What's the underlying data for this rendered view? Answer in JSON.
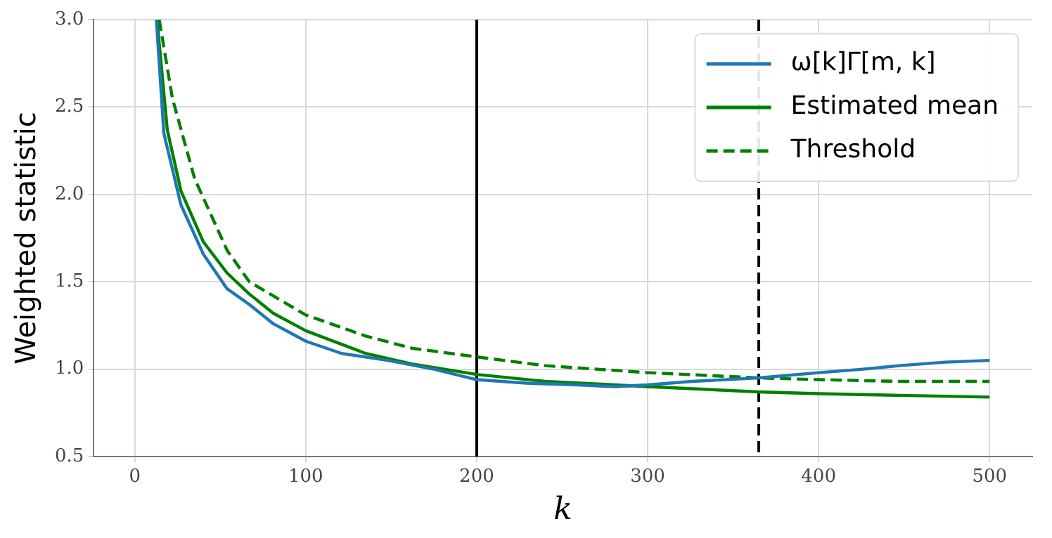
{
  "chart_data": {
    "type": "line",
    "xlabel": "k",
    "ylabel": "Weighted statistic",
    "xlim": [
      -24,
      525
    ],
    "xticks": [
      0,
      100,
      200,
      300,
      400,
      500
    ],
    "ylim": [
      0.5,
      3.0
    ],
    "yticks": [
      {
        "value": 0.5,
        "label": "0.5"
      },
      {
        "value": 1.0,
        "label": "1.0"
      },
      {
        "value": 1.5,
        "label": "1.5"
      },
      {
        "value": 2.0,
        "label": "2.0"
      },
      {
        "value": 2.5,
        "label": "2.5"
      },
      {
        "value": 3.0,
        "label": "3.0"
      }
    ],
    "grid": true,
    "legend": "top right",
    "marker": "none",
    "series": [
      {
        "name": "ω[k]Γ[m, k]",
        "color": "#1f77b4",
        "line_style": "solid",
        "x": [
          12.6,
          17,
          27,
          40,
          54,
          67,
          81,
          100,
          121,
          148,
          175,
          200,
          229,
          259,
          281,
          300,
          326,
          365,
          400,
          426,
          447,
          474,
          500
        ],
        "values": [
          3.0,
          2.35,
          1.94,
          1.66,
          1.46,
          1.37,
          1.26,
          1.16,
          1.09,
          1.05,
          1.0,
          0.94,
          0.92,
          0.91,
          0.9,
          0.91,
          0.93,
          0.95,
          0.98,
          1.0,
          1.02,
          1.04,
          1.05
        ]
      },
      {
        "name": "Estimated mean",
        "color": "#008000",
        "line_style": "solid",
        "x": [
          13,
          19,
          27,
          40,
          54,
          67,
          81,
          100,
          135,
          162,
          200,
          240,
          281,
          300,
          365,
          400,
          447,
          500
        ],
        "values": [
          3.0,
          2.37,
          2.02,
          1.73,
          1.55,
          1.43,
          1.32,
          1.22,
          1.09,
          1.03,
          0.97,
          0.93,
          0.91,
          0.9,
          0.87,
          0.86,
          0.85,
          0.84
        ]
      },
      {
        "name": "Threshold",
        "color": "#008000",
        "line_style": "dashed",
        "x": [
          14.3,
          22,
          35,
          54,
          67,
          100,
          135,
          162,
          200,
          240,
          300,
          365,
          400,
          447,
          500
        ],
        "values": [
          3.0,
          2.55,
          2.09,
          1.68,
          1.5,
          1.31,
          1.19,
          1.12,
          1.07,
          1.02,
          0.98,
          0.95,
          0.94,
          0.93,
          0.93
        ]
      }
    ],
    "ref_lines": [
      {
        "axis": "x",
        "value": 200,
        "color": "#000000",
        "line_style": "solid"
      },
      {
        "axis": "x",
        "value": 365,
        "color": "#000000",
        "line_style": "dashed"
      }
    ]
  }
}
